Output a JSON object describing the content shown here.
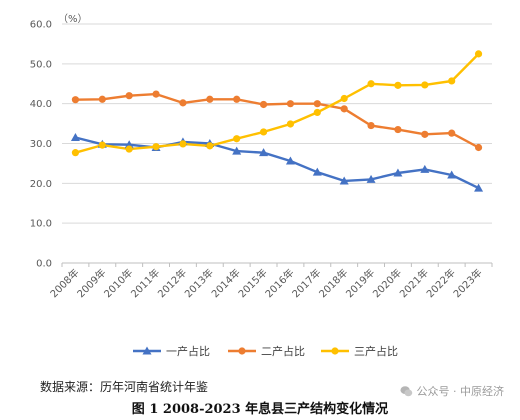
{
  "chart_data": {
    "type": "line",
    "unit_label": "（%）",
    "categories": [
      "2008年",
      "2009年",
      "2010年",
      "2011年",
      "2012年",
      "2013年",
      "2014年",
      "2015年",
      "2016年",
      "2017年",
      "2018年",
      "2019年",
      "2020年",
      "2021年",
      "2022年",
      "2023年"
    ],
    "series": [
      {
        "name": "一产占比",
        "color": "#4472C4",
        "marker": "triangle",
        "values": [
          31.5,
          29.8,
          29.7,
          29.0,
          30.4,
          30.0,
          28.1,
          27.7,
          25.6,
          22.8,
          20.6,
          21.0,
          22.6,
          23.5,
          22.1,
          18.8
        ]
      },
      {
        "name": "二产占比",
        "color": "#ED7D31",
        "marker": "circle",
        "values": [
          41.0,
          41.1,
          42.0,
          42.4,
          40.2,
          41.1,
          41.1,
          39.8,
          40.0,
          40.0,
          38.7,
          34.5,
          33.5,
          32.3,
          32.6,
          29.0
        ]
      },
      {
        "name": "三产占比",
        "color": "#FFC000",
        "marker": "circle",
        "values": [
          27.7,
          29.6,
          28.6,
          29.2,
          29.9,
          29.4,
          31.2,
          32.9,
          34.9,
          37.8,
          41.3,
          45.0,
          44.6,
          44.7,
          45.7,
          52.5
        ]
      }
    ],
    "ylim": [
      0,
      60
    ],
    "yticks": [
      "0.0",
      "10.0",
      "20.0",
      "30.0",
      "40.0",
      "50.0",
      "60.0"
    ],
    "grid": true,
    "legend_position": "bottom-center"
  },
  "source_text": "数据来源：历年河南省统计年鉴",
  "caption_text": "图 1  2008-2023 年息县三产结构变化情况",
  "watermark": {
    "icon": "wechat-icon",
    "text": "公众号 · 中原经济"
  }
}
